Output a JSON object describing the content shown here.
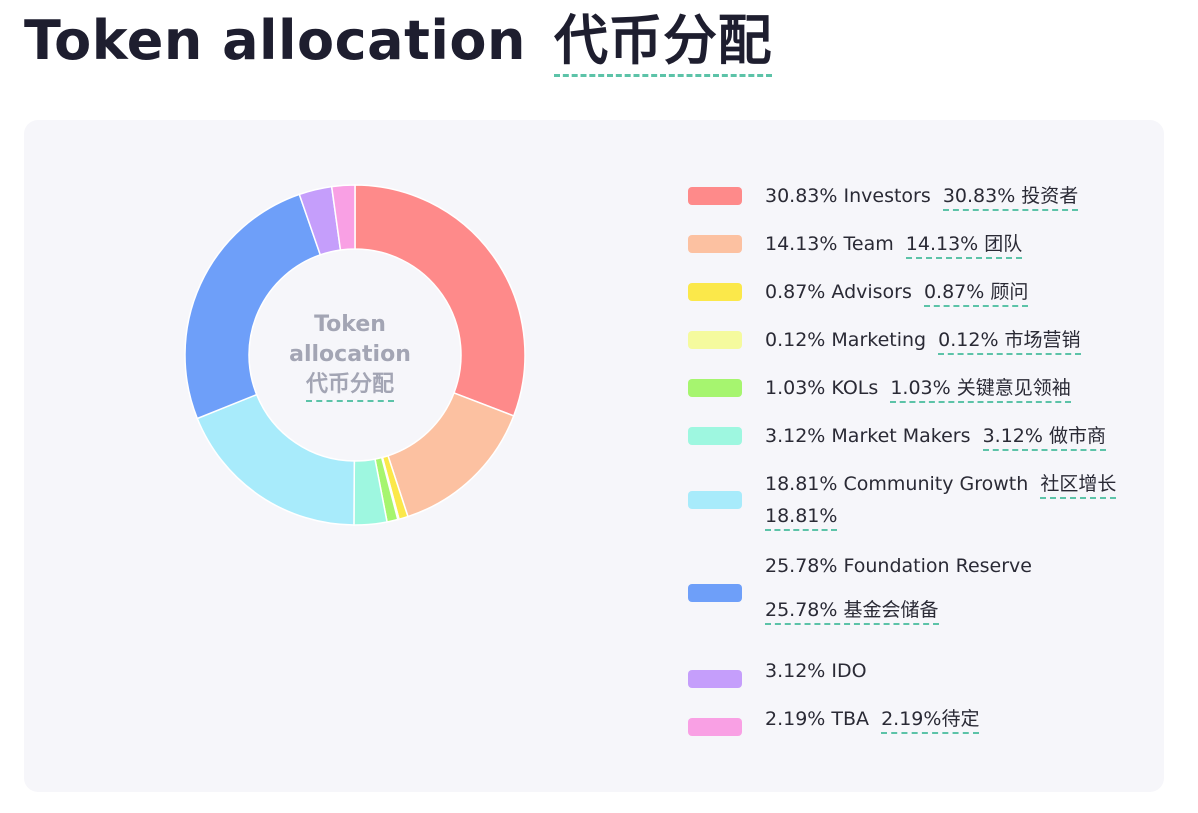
{
  "title": {
    "en": "Token allocation",
    "zh": "代币分配"
  },
  "chart_data": {
    "type": "pie",
    "donut": true,
    "center_label": {
      "line1": "Token",
      "line2": "allocation",
      "line3": "代币分配"
    },
    "legend_position": "right",
    "slices": [
      {
        "label": "Investors",
        "value": 30.83,
        "pct_text": "30.83%",
        "zh_text": "30.83% 投资者",
        "color": "#fe8a8a"
      },
      {
        "label": "Team",
        "value": 14.13,
        "pct_text": "14.13%",
        "zh_text": "14.13% 团队",
        "color": "#fcc1a1"
      },
      {
        "label": "Advisors",
        "value": 0.87,
        "pct_text": "0.87%",
        "zh_text": "0.87% 顾问",
        "color": "#fbe84a"
      },
      {
        "label": "Marketing",
        "value": 0.12,
        "pct_text": "0.12%",
        "zh_text": "0.12% 市场营销",
        "color": "#f5fa9e"
      },
      {
        "label": "KOLs",
        "value": 1.03,
        "pct_text": "1.03%",
        "zh_text": "1.03% 关键意见领袖",
        "color": "#a6f56f"
      },
      {
        "label": "Market Makers",
        "value": 3.12,
        "pct_text": "3.12%",
        "zh_text": "3.12% 做市商",
        "color": "#9ef7e0"
      },
      {
        "label": "Community Growth",
        "value": 18.81,
        "pct_text": "18.81%",
        "zh_text": "社区增长",
        "zh_text2": "18.81%",
        "color": "#a8ebfb"
      },
      {
        "label": "Foundation Reserve",
        "value": 25.78,
        "pct_text": "25.78%",
        "zh_text": "25.78% 基金会储备",
        "color": "#6e9ff9"
      },
      {
        "label": "IDO",
        "value": 3.12,
        "pct_text": "3.12%",
        "zh_text": "",
        "color": "#c59efb"
      },
      {
        "label": "TBA",
        "value": 2.19,
        "pct_text": "2.19%",
        "zh_text": "2.19%待定",
        "color": "#f9a0e4"
      }
    ]
  }
}
